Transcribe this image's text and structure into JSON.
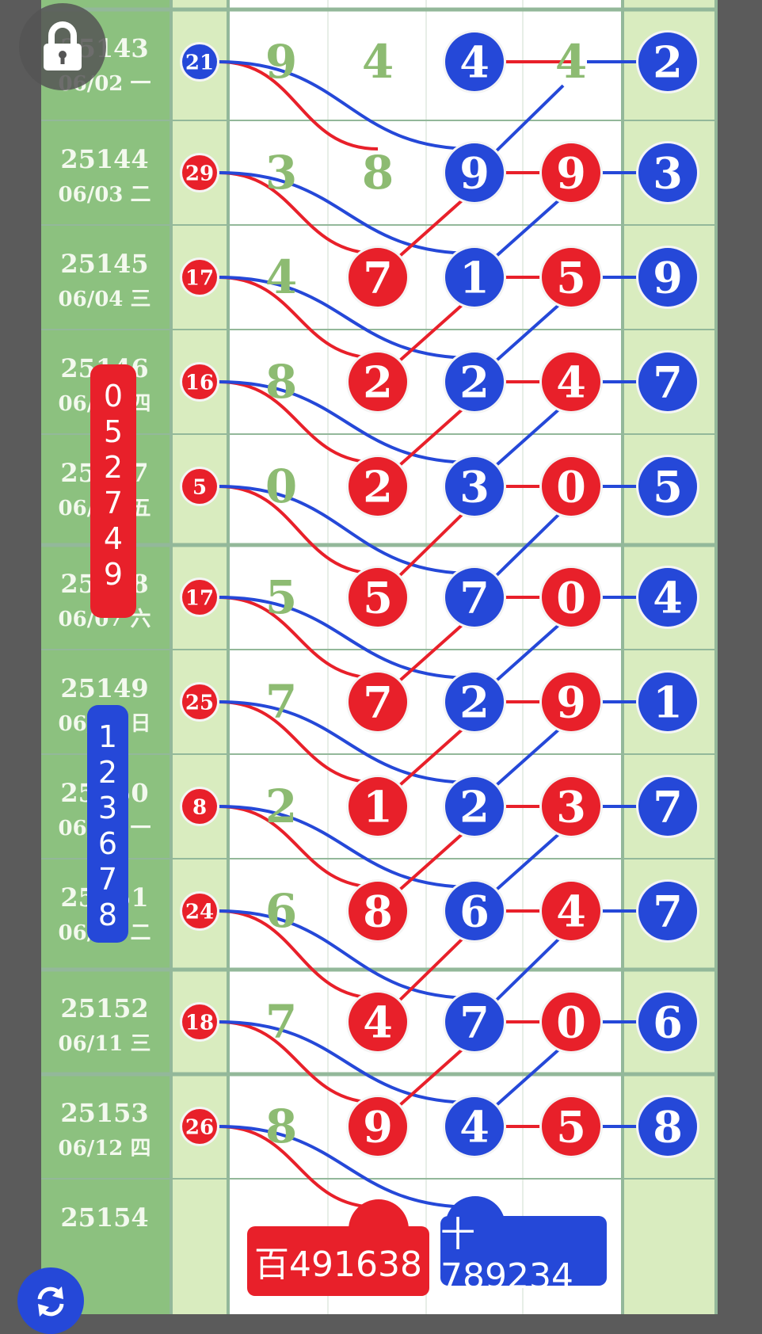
{
  "rows": [
    {
      "issue": "25143",
      "date": "06/02 一",
      "sum": "21",
      "sum_color": "blue",
      "ge_digit": "9",
      "shi_digit": "4",
      "bai_digit": "4",
      "bai_color": "blue",
      "col5_digit": "4",
      "col5_color": "none",
      "last": "2"
    },
    {
      "issue": "25144",
      "date": "06/03 二",
      "sum": "29",
      "sum_color": "red",
      "ge_digit": "3",
      "shi_digit": "8",
      "bai_digit": "9",
      "bai_color": "blue",
      "col5_digit": "9",
      "col5_color": "red",
      "last": "3"
    },
    {
      "issue": "25145",
      "date": "06/04 三",
      "sum": "17",
      "sum_color": "red",
      "ge_digit": "4",
      "shi_digit": "7",
      "shi_color": "red",
      "bai_digit": "1",
      "bai_color": "blue",
      "col5_digit": "5",
      "col5_color": "red",
      "last": "9"
    },
    {
      "issue": "25146",
      "date": "06/05 四",
      "sum": "16",
      "sum_color": "red",
      "ge_digit": "8",
      "shi_digit": "2",
      "shi_color": "red",
      "bai_digit": "2",
      "bai_color": "blue",
      "col5_digit": "4",
      "col5_color": "red",
      "last": "7"
    },
    {
      "issue": "25147",
      "date": "06/06 五",
      "sum": "5",
      "sum_color": "red",
      "ge_digit": "0",
      "shi_digit": "2",
      "shi_color": "red",
      "bai_digit": "3",
      "bai_color": "blue",
      "col5_digit": "0",
      "col5_color": "red",
      "last": "5"
    },
    {
      "issue": "25148",
      "date": "06/07 六",
      "sum": "17",
      "sum_color": "red",
      "ge_digit": "5",
      "shi_digit": "5",
      "shi_color": "red",
      "bai_digit": "7",
      "bai_color": "blue",
      "col5_digit": "0",
      "col5_color": "red",
      "last": "4"
    },
    {
      "issue": "25149",
      "date": "06/08 日",
      "sum": "25",
      "sum_color": "red",
      "ge_digit": "7",
      "shi_digit": "7",
      "shi_color": "red",
      "bai_digit": "2",
      "bai_color": "blue",
      "col5_digit": "9",
      "col5_color": "red",
      "last": "1"
    },
    {
      "issue": "25150",
      "date": "06/09 一",
      "sum": "8",
      "sum_color": "red",
      "ge_digit": "2",
      "shi_digit": "1",
      "shi_color": "red",
      "bai_digit": "2",
      "bai_color": "blue",
      "col5_digit": "3",
      "col5_color": "red",
      "last": "7"
    },
    {
      "issue": "25151",
      "date": "06/10 二",
      "sum": "24",
      "sum_color": "red",
      "ge_digit": "6",
      "shi_digit": "8",
      "shi_color": "red",
      "bai_digit": "6",
      "bai_color": "blue",
      "col5_digit": "4",
      "col5_color": "red",
      "last": "7"
    },
    {
      "issue": "25152",
      "date": "06/11 三",
      "sum": "18",
      "sum_color": "red",
      "ge_digit": "7",
      "shi_digit": "4",
      "shi_color": "red",
      "bai_digit": "7",
      "bai_color": "blue",
      "col5_digit": "0",
      "col5_color": "red",
      "last": "6"
    },
    {
      "issue": "25153",
      "date": "06/12 四",
      "sum": "26",
      "sum_color": "red",
      "ge_digit": "8",
      "shi_digit": "9",
      "shi_color": "red",
      "bai_digit": "4",
      "bai_color": "blue",
      "col5_digit": "5",
      "col5_color": "red",
      "last": "8"
    },
    {
      "issue": "25154",
      "date": ""
    }
  ],
  "side_red_digits": [
    "0",
    "5",
    "2",
    "7",
    "4",
    "9"
  ],
  "side_blue_digits": [
    "1",
    "2",
    "3",
    "6",
    "7",
    "8"
  ],
  "bottom": {
    "bai_label": "百491638",
    "shi_label": "十789234"
  },
  "colors": {
    "red": "#e8202a",
    "blue": "#2548d8",
    "green_text": "#8dbb72",
    "issue_bg": "#8cc17f",
    "sum_bg": "#d9ecbf",
    "grid_bg": "#ffffff",
    "line": "#93b89a"
  }
}
